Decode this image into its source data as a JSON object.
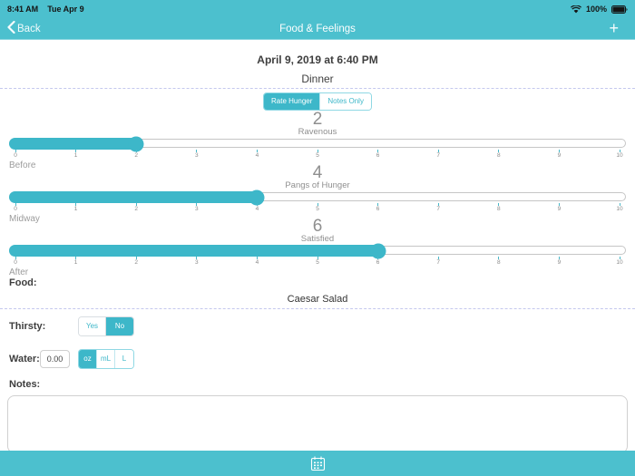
{
  "colors": {
    "header_teal": "#4cc0ce",
    "accent_teal": "#3db7c9",
    "dashed_line": "#c4c8ee"
  },
  "status_bar": {
    "time": "8:41 AM",
    "date": "Tue Apr 9",
    "battery_percent": "100%"
  },
  "nav_bar": {
    "back_label": "Back",
    "title": "Food & Feelings",
    "add_label": "+"
  },
  "entry_header": {
    "datetime": "April 9, 2019 at 6:40 PM",
    "meal_type": "Dinner"
  },
  "mode_toggle": {
    "options": [
      {
        "label": "Rate Hunger",
        "selected": true
      },
      {
        "label": "Notes Only",
        "selected": false
      }
    ]
  },
  "sliders": [
    {
      "stage_label": "Before",
      "value": 2,
      "value_label": "Ravenous",
      "min": 0,
      "max": 10
    },
    {
      "stage_label": "Midway",
      "value": 4,
      "value_label": "Pangs of Hunger",
      "min": 0,
      "max": 10
    },
    {
      "stage_label": "After",
      "value": 6,
      "value_label": "Satisfied",
      "min": 0,
      "max": 10
    }
  ],
  "food": {
    "label": "Food:",
    "value": "Caesar Salad"
  },
  "thirsty": {
    "label": "Thirsty:",
    "options": [
      {
        "label": "Yes",
        "selected": false
      },
      {
        "label": "No",
        "selected": true
      }
    ]
  },
  "water": {
    "label": "Water:",
    "amount": "0.00",
    "units": [
      {
        "label": "oz",
        "selected": true
      },
      {
        "label": "mL",
        "selected": false
      },
      {
        "label": "L",
        "selected": false
      }
    ]
  },
  "notes": {
    "label": "Notes:",
    "value": ""
  },
  "toolbar": {
    "icon": "calendar-icon"
  }
}
